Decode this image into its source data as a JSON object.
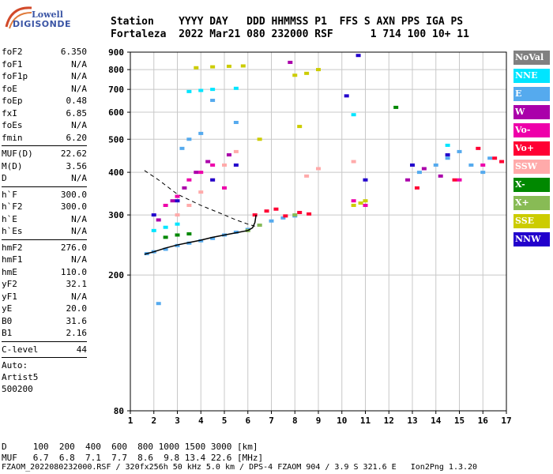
{
  "logo": {
    "line1": "Lowell",
    "line2": "DIGISONDE"
  },
  "header": {
    "line1": "Station    YYYY DAY   DDD HHMMSS P1  FFS S AXN PPS IGA PS",
    "line2": "Fortaleza  2022 Mar21 080 232000 RSF      1 714 100 10+ 11"
  },
  "params": [
    {
      "name": "foF2",
      "value": "6.350"
    },
    {
      "name": "foF1",
      "value": "N/A"
    },
    {
      "name": "foF1p",
      "value": "N/A"
    },
    {
      "name": "foE",
      "value": "N/A"
    },
    {
      "name": "foEp",
      "value": "0.48"
    },
    {
      "name": "fxI",
      "value": "6.85"
    },
    {
      "name": "foEs",
      "value": "N/A"
    },
    {
      "name": "fmin",
      "value": "6.20"
    },
    {
      "sep": true
    },
    {
      "name": "MUF(D)",
      "value": "22.62"
    },
    {
      "name": "M(D)",
      "value": "3.56"
    },
    {
      "name": "D",
      "value": "N/A"
    },
    {
      "sep": true
    },
    {
      "name": "h`F",
      "value": "300.0"
    },
    {
      "name": "h`F2",
      "value": "300.0"
    },
    {
      "name": "h`E",
      "value": "N/A"
    },
    {
      "name": "h`Es",
      "value": "N/A"
    },
    {
      "sep": true
    },
    {
      "name": "hmF2",
      "value": "276.0"
    },
    {
      "name": "hmF1",
      "value": "N/A"
    },
    {
      "name": "hmE",
      "value": "110.0"
    },
    {
      "name": "yF2",
      "value": "32.1"
    },
    {
      "name": "yF1",
      "value": "N/A"
    },
    {
      "name": "yE",
      "value": "20.0"
    },
    {
      "name": "B0",
      "value": "31.6"
    },
    {
      "name": "B1",
      "value": "2.16"
    },
    {
      "sep": true
    },
    {
      "name": "C-level",
      "value": "44"
    },
    {
      "sep": true
    },
    {
      "text": "Auto:"
    },
    {
      "text": "Artist5"
    },
    {
      "text": "500200"
    }
  ],
  "legend": [
    {
      "label": "NoVal",
      "bg": "#808080",
      "fg": "#ffffff"
    },
    {
      "label": "NNE",
      "bg": "#00e5ff",
      "fg": "#ffffff"
    },
    {
      "label": "E",
      "bg": "#55aaee",
      "fg": "#ffffff"
    },
    {
      "label": "W",
      "bg": "#aa00aa",
      "fg": "#ffffff"
    },
    {
      "label": "Vo-",
      "bg": "#ee00aa",
      "fg": "#ffffff"
    },
    {
      "label": "Vo+",
      "bg": "#ff0033",
      "fg": "#ffffff"
    },
    {
      "label": "SSW",
      "bg": "#ffaaaa",
      "fg": "#ffffff"
    },
    {
      "label": "X-",
      "bg": "#008800",
      "fg": "#ffffff"
    },
    {
      "label": "X+",
      "bg": "#88bb55",
      "fg": "#ffffff"
    },
    {
      "label": "SSE",
      "bg": "#cccc00",
      "fg": "#ffffff"
    },
    {
      "label": "NNW",
      "bg": "#2200cc",
      "fg": "#ffffff"
    }
  ],
  "chart_data": {
    "type": "scatter",
    "title": "",
    "xlabel": "",
    "ylabel": "",
    "xlim": [
      1,
      17
    ],
    "ylim": [
      80,
      900
    ],
    "xticks": [
      1,
      2,
      3,
      4,
      5,
      6,
      7,
      8,
      9,
      10,
      11,
      12,
      13,
      14,
      15,
      16,
      17
    ],
    "yticks": [
      80,
      200,
      300,
      400,
      500,
      600,
      700,
      800,
      900
    ],
    "y_scale": "log",
    "grid": true,
    "legend_position": "right",
    "series": [
      {
        "name": "E",
        "color": "#55aaee",
        "points": [
          [
            1.7,
            231
          ],
          [
            2.0,
            234
          ],
          [
            2.5,
            238
          ],
          [
            3.0,
            244
          ],
          [
            3.5,
            248
          ],
          [
            4.0,
            252
          ],
          [
            4.5,
            256
          ],
          [
            5.0,
            262
          ],
          [
            5.5,
            267
          ],
          [
            6.0,
            272
          ],
          [
            6.5,
            280
          ],
          [
            7.0,
            288
          ],
          [
            7.5,
            294
          ],
          [
            8.0,
            298
          ],
          [
            2.2,
            165
          ],
          [
            3.2,
            470
          ],
          [
            3.5,
            500
          ],
          [
            4.0,
            520
          ],
          [
            4.5,
            650
          ],
          [
            5.5,
            560
          ],
          [
            13.3,
            400
          ],
          [
            14.0,
            420
          ],
          [
            14.5,
            440
          ],
          [
            15.0,
            460
          ],
          [
            15.5,
            420
          ],
          [
            16.0,
            400
          ],
          [
            16.3,
            440
          ]
        ]
      },
      {
        "name": "Vo+",
        "color": "#ff0033",
        "points": [
          [
            6.3,
            300
          ],
          [
            6.8,
            308
          ],
          [
            7.2,
            312
          ],
          [
            7.6,
            298
          ],
          [
            8.2,
            305
          ],
          [
            8.6,
            302
          ],
          [
            16.5,
            440
          ],
          [
            16.8,
            430
          ],
          [
            15.8,
            470
          ],
          [
            14.8,
            380
          ],
          [
            13.2,
            360
          ]
        ]
      },
      {
        "name": "Vo-",
        "color": "#ee00aa",
        "points": [
          [
            2.5,
            320
          ],
          [
            3.0,
            340
          ],
          [
            3.5,
            380
          ],
          [
            4.0,
            400
          ],
          [
            4.5,
            420
          ],
          [
            5.0,
            360
          ],
          [
            10.5,
            330
          ],
          [
            11.0,
            320
          ],
          [
            15.0,
            380
          ],
          [
            16.0,
            420
          ]
        ]
      },
      {
        "name": "W",
        "color": "#aa00aa",
        "points": [
          [
            2.2,
            290
          ],
          [
            2.8,
            330
          ],
          [
            3.3,
            360
          ],
          [
            3.8,
            400
          ],
          [
            4.3,
            430
          ],
          [
            5.2,
            450
          ],
          [
            7.8,
            840
          ],
          [
            12.8,
            380
          ],
          [
            13.5,
            410
          ],
          [
            14.2,
            390
          ]
        ]
      },
      {
        "name": "SSW",
        "color": "#ffaaaa",
        "points": [
          [
            3.0,
            300
          ],
          [
            3.5,
            320
          ],
          [
            4.0,
            350
          ],
          [
            4.5,
            380
          ],
          [
            5.0,
            420
          ],
          [
            5.5,
            460
          ],
          [
            8.5,
            390
          ],
          [
            9.0,
            410
          ],
          [
            10.5,
            430
          ]
        ]
      },
      {
        "name": "SSE",
        "color": "#cccc00",
        "points": [
          [
            3.8,
            810
          ],
          [
            4.5,
            815
          ],
          [
            5.2,
            818
          ],
          [
            5.8,
            820
          ],
          [
            8.0,
            770
          ],
          [
            8.5,
            780
          ],
          [
            9.0,
            800
          ],
          [
            10.5,
            320
          ],
          [
            10.8,
            325
          ],
          [
            11.0,
            330
          ],
          [
            8.2,
            545
          ],
          [
            6.5,
            500
          ]
        ]
      },
      {
        "name": "NNE",
        "color": "#00e5ff",
        "points": [
          [
            2.0,
            270
          ],
          [
            2.5,
            276
          ],
          [
            3.0,
            282
          ],
          [
            3.5,
            690
          ],
          [
            4.0,
            695
          ],
          [
            4.5,
            700
          ],
          [
            5.5,
            705
          ],
          [
            10.5,
            590
          ],
          [
            14.5,
            480
          ]
        ]
      },
      {
        "name": "NNW",
        "color": "#2200cc",
        "points": [
          [
            2.0,
            300
          ],
          [
            3.0,
            330
          ],
          [
            4.5,
            380
          ],
          [
            5.5,
            420
          ],
          [
            10.2,
            670
          ],
          [
            10.7,
            880
          ],
          [
            11.0,
            380
          ],
          [
            13.0,
            420
          ],
          [
            14.5,
            450
          ]
        ]
      },
      {
        "name": "X-",
        "color": "#008800",
        "points": [
          [
            2.5,
            258
          ],
          [
            3.0,
            262
          ],
          [
            3.5,
            264
          ],
          [
            12.3,
            620
          ]
        ]
      },
      {
        "name": "X+",
        "color": "#88bb55",
        "points": [
          [
            6.0,
            270
          ],
          [
            6.5,
            280
          ],
          [
            8.0,
            300
          ]
        ]
      }
    ],
    "profile_curve": {
      "x": [
        1.6,
        2.0,
        2.5,
        3.0,
        3.5,
        4.0,
        4.5,
        5.0,
        5.5,
        6.0,
        6.2,
        6.3,
        6.35
      ],
      "y": [
        230,
        234,
        240,
        245,
        249,
        253,
        258,
        262,
        266,
        270,
        275,
        285,
        300
      ]
    },
    "dashed_curve": {
      "x": [
        1.6,
        2.2,
        3.0,
        4.0,
        5.0,
        5.5,
        6.0,
        6.3
      ],
      "y": [
        405,
        380,
        345,
        320,
        300,
        290,
        282,
        278
      ]
    }
  },
  "footer": {
    "line1": "D     100  200  400  600  800 1000 1500 3000 [km]",
    "line2": "MUF   6.7  6.8  7.1  7.7  8.6  9.8 13.4 22.6 [MHz]",
    "line3": "FZAOM_2022080232000.RSF / 320fx256h 50 kHz 5.0 km / DPS-4 FZAOM 904 / 3.9 S 321.6 E   Ion2Png 1.3.20"
  }
}
